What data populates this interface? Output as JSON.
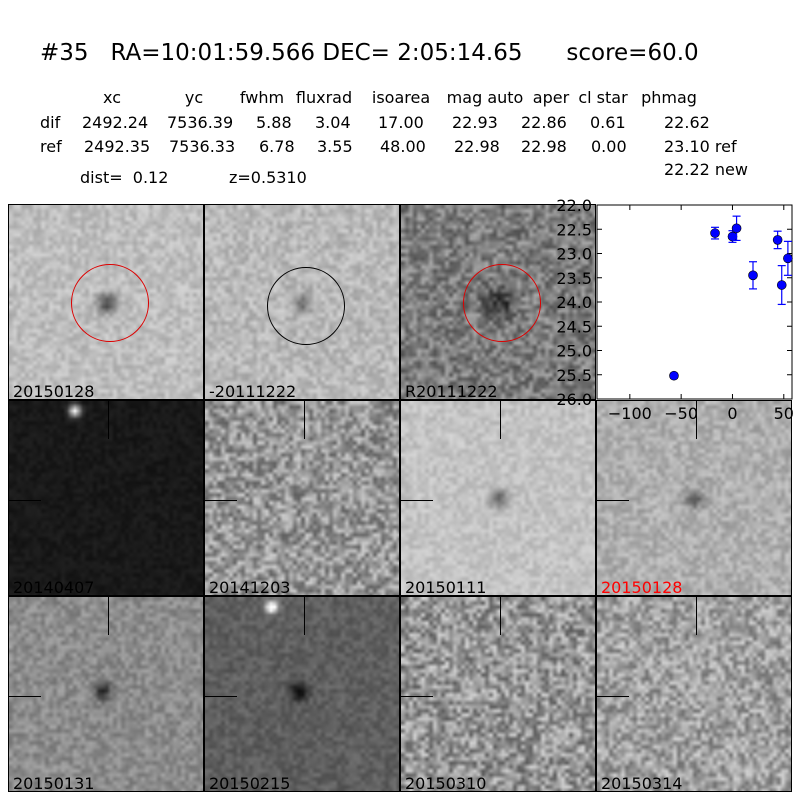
{
  "title": {
    "id": "#35",
    "coords": "RA=10:01:59.566 DEC= 2:05:14.65",
    "score": "score=60.0"
  },
  "table": {
    "columns": [
      "xc",
      "yc",
      "fwhm",
      "fluxrad",
      "isoarea",
      "mag auto",
      "aper",
      "cl star",
      "phmag"
    ],
    "rows": [
      {
        "label": "dif",
        "values": [
          "2492.24",
          "7536.39",
          "5.88",
          "3.04",
          "17.00",
          "22.93",
          "22.86",
          "0.61",
          "22.62"
        ]
      },
      {
        "label": "ref",
        "values": [
          "2492.35",
          "7536.33",
          "6.78",
          "3.55",
          "48.00",
          "22.98",
          "22.98",
          "0.00",
          "23.10 ref"
        ]
      }
    ],
    "extra_phmag": "22.22 new",
    "dist": "dist=  0.12",
    "z": "z=0.5310"
  },
  "panels": [
    {
      "label": "20150128",
      "circle": "red"
    },
    {
      "label": "-20111222",
      "circle": "black"
    },
    {
      "label": "R20111222",
      "circle": "red"
    },
    {
      "label": "20140407"
    },
    {
      "label": "20141203"
    },
    {
      "label": "20150111"
    },
    {
      "label": "20150128",
      "label_color": "#ff0000"
    },
    {
      "label": "20150131"
    },
    {
      "label": "20150215"
    },
    {
      "label": "20150310"
    },
    {
      "label": "20150314"
    }
  ],
  "chart_data": {
    "type": "scatter",
    "xlim": [
      -132,
      58
    ],
    "ylim": [
      26.0,
      22.0
    ],
    "y_inverted": true,
    "xticks": [
      "-100",
      "-50",
      "0",
      "50"
    ],
    "yticks": [
      "22.0",
      "22.5",
      "23.0",
      "23.5",
      "24.0",
      "24.5",
      "25.0",
      "25.5",
      "26.0"
    ],
    "color": "#0000ff",
    "points": [
      {
        "x": -57,
        "y": 25.52,
        "err": 0.05
      },
      {
        "x": -17,
        "y": 22.58,
        "err": 0.12
      },
      {
        "x": 0,
        "y": 22.65,
        "err": 0.12
      },
      {
        "x": 4,
        "y": 22.48,
        "err": 0.25
      },
      {
        "x": 20,
        "y": 23.45,
        "err": 0.28
      },
      {
        "x": 44,
        "y": 22.72,
        "err": 0.18
      },
      {
        "x": 48,
        "y": 23.65,
        "err": 0.4
      },
      {
        "x": 54,
        "y": 23.1,
        "err": 0.35
      }
    ]
  }
}
